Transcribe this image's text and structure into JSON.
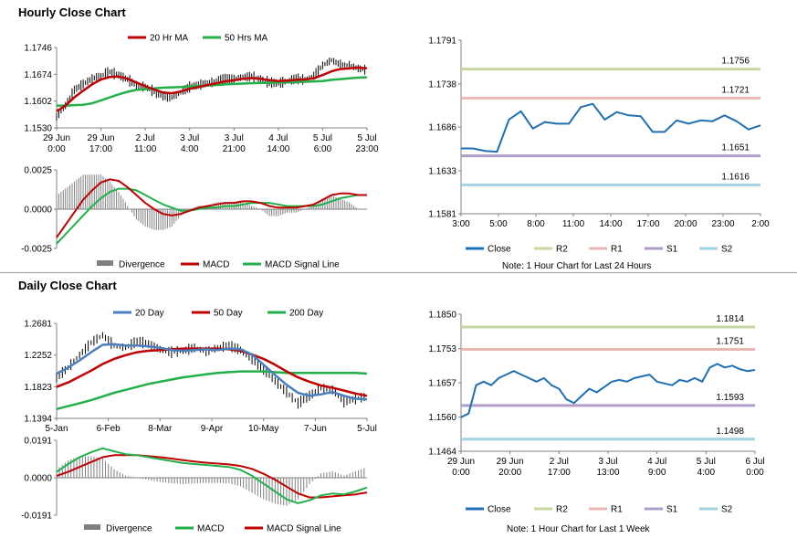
{
  "sections": {
    "hourly_title": "Hourly Close Chart",
    "daily_title": "Daily Close Chart",
    "hourly_note": "Note: 1 Hour Chart for Last 24 Hours",
    "daily_note": "Note: 1 Hour Chart for Last 1 Week"
  },
  "chart_data": [
    {
      "id": "hourly-price",
      "type": "line",
      "title": "",
      "ylim": [
        1.153,
        1.1746
      ],
      "yticks": [
        "1.1746",
        "1.1674",
        "1.1602",
        "1.1530"
      ],
      "xticks": [
        "29 Jun 0:00",
        "29 Jun 17:00",
        "2 Jul 11:00",
        "3 Jul 4:00",
        "3 Jul 21:00",
        "4 Jul 14:00",
        "5 Jul 6:00",
        "5 Jul 23:00"
      ],
      "legend": [
        "20 Hr MA",
        "50 Hrs MA"
      ],
      "colors": {
        "ma_short": "#c00000",
        "ma_long": "#22b04b",
        "price": "#000000"
      },
      "series": [
        {
          "name": "Price",
          "values": [
            1.156,
            1.159,
            1.1632,
            1.1648,
            1.1662,
            1.167,
            1.168,
            1.1672,
            1.166,
            1.1645,
            1.164,
            1.1628,
            1.1615,
            1.1612,
            1.1625,
            1.164,
            1.1645,
            1.165,
            1.1655,
            1.166,
            1.1662,
            1.1666,
            1.1668,
            1.166,
            1.1652,
            1.165,
            1.1656,
            1.1662,
            1.166,
            1.167,
            1.1698,
            1.1712,
            1.17,
            1.1698,
            1.169,
            1.1685
          ]
        },
        {
          "name": "20 Hr MA",
          "values": [
            1.1575,
            1.159,
            1.1612,
            1.163,
            1.1647,
            1.166,
            1.1667,
            1.1668,
            1.1662,
            1.1652,
            1.1642,
            1.1633,
            1.1625,
            1.1623,
            1.1628,
            1.1635,
            1.164,
            1.1645,
            1.165,
            1.1655,
            1.1658,
            1.1662,
            1.1664,
            1.1662,
            1.1658,
            1.1656,
            1.1657,
            1.1659,
            1.166,
            1.1663,
            1.1672,
            1.1682,
            1.1688,
            1.169,
            1.1692,
            1.169
          ]
        },
        {
          "name": "50 Hrs MA",
          "values": [
            1.159,
            1.159,
            1.1591,
            1.1592,
            1.1596,
            1.1604,
            1.1612,
            1.162,
            1.1627,
            1.1632,
            1.1634,
            1.1636,
            1.1638,
            1.1639,
            1.164,
            1.1642,
            1.1643,
            1.1644,
            1.1645,
            1.1647,
            1.1648,
            1.1649,
            1.165,
            1.1651,
            1.1651,
            1.1652,
            1.1652,
            1.1653,
            1.1654,
            1.1655,
            1.1656,
            1.1659,
            1.1661,
            1.1663,
            1.1665,
            1.1666
          ]
        }
      ]
    },
    {
      "id": "hourly-macd",
      "type": "line",
      "title": "",
      "ylim": [
        -0.0025,
        0.0025
      ],
      "yticks": [
        "0.0025",
        "0.0000",
        "-0.0025"
      ],
      "legend": [
        "Divergence",
        "MACD",
        "MACD Signal Line"
      ],
      "colors": {
        "divergence": "#7f7f7f",
        "macd": "#c00000",
        "signal": "#22b04b"
      },
      "series": [
        {
          "name": "MACD",
          "values": [
            -0.0018,
            -0.001,
            -0.0002,
            0.0006,
            0.0012,
            0.0017,
            0.0019,
            0.0018,
            0.0014,
            0.0009,
            0.0004,
            0.0,
            -0.0003,
            -0.0004,
            -0.0003,
            -0.0001,
            0.0001,
            0.0002,
            0.0003,
            0.0004,
            0.0004,
            0.0005,
            0.0005,
            0.0004,
            0.0002,
            0.0001,
            0.0001,
            0.0001,
            0.0002,
            0.0003,
            0.0006,
            0.0009,
            0.001,
            0.001,
            0.0009,
            0.0009
          ]
        },
        {
          "name": "MACD Signal Line",
          "values": [
            -0.0022,
            -0.0016,
            -0.001,
            -0.0004,
            0.0002,
            0.0007,
            0.0011,
            0.0013,
            0.0013,
            0.0012,
            0.0009,
            0.0006,
            0.0003,
            0.0001,
            -0.0001,
            -0.0001,
            0.0,
            0.0001,
            0.0001,
            0.0002,
            0.0002,
            0.0003,
            0.0004,
            0.0004,
            0.0004,
            0.0003,
            0.0002,
            0.0002,
            0.0002,
            0.0002,
            0.0003,
            0.0005,
            0.0007,
            0.0008,
            0.0009,
            0.0009
          ]
        }
      ]
    },
    {
      "id": "hourly-levels",
      "type": "line",
      "title": "",
      "ylim": [
        1.1581,
        1.1791
      ],
      "yticks": [
        "1.1791",
        "1.1738",
        "1.1686",
        "1.1633",
        "1.1581"
      ],
      "xticks": [
        "3:00",
        "5:00",
        "8:00",
        "11:00",
        "14:00",
        "17:00",
        "20:00",
        "23:00",
        "2:00"
      ],
      "legend": [
        "Close",
        "R2",
        "R1",
        "S1",
        "S2"
      ],
      "colors": {
        "close": "#1f6fb4",
        "r2": "#c6d6a0",
        "r1": "#e8b8b4",
        "s1": "#b09cc8",
        "s2": "#9fd4e0"
      },
      "levels": [
        {
          "name": "R2",
          "value": 1.1756,
          "label": "1.1756"
        },
        {
          "name": "R1",
          "value": 1.1721,
          "label": "1.1721"
        },
        {
          "name": "S1",
          "value": 1.1651,
          "label": "1.1651"
        },
        {
          "name": "S2",
          "value": 1.1616,
          "label": "1.1616"
        }
      ],
      "series": [
        {
          "name": "Close",
          "values": [
            1.166,
            1.166,
            1.1657,
            1.1656,
            1.1695,
            1.1705,
            1.1684,
            1.1692,
            1.169,
            1.169,
            1.171,
            1.1714,
            1.1695,
            1.1704,
            1.17,
            1.1699,
            1.168,
            1.168,
            1.1694,
            1.169,
            1.1694,
            1.1693,
            1.17,
            1.1693,
            1.1683,
            1.1688
          ]
        }
      ]
    },
    {
      "id": "daily-price",
      "type": "line",
      "title": "",
      "ylim": [
        1.1394,
        1.2681
      ],
      "yticks": [
        "1.2681",
        "1.2252",
        "1.1823",
        "1.1394"
      ],
      "xticks": [
        "5-Jan",
        "6-Feb",
        "8-Mar",
        "9-Apr",
        "10-May",
        "7-Jun",
        "5-Jul"
      ],
      "legend": [
        "20 Day",
        "50 Day",
        "200 Day"
      ],
      "colors": {
        "ma20": "#4a7fbf",
        "ma50": "#c00000",
        "ma200": "#22b04b",
        "price": "#000000"
      },
      "series": [
        {
          "name": "Price",
          "values": [
            1.195,
            1.208,
            1.225,
            1.242,
            1.252,
            1.238,
            1.235,
            1.244,
            1.24,
            1.233,
            1.229,
            1.231,
            1.235,
            1.23,
            1.235,
            1.238,
            1.232,
            1.22,
            1.205,
            1.19,
            1.175,
            1.16,
            1.17,
            1.18,
            1.178,
            1.162,
            1.166,
            1.169
          ]
        },
        {
          "name": "20 Day",
          "values": [
            1.2,
            1.208,
            1.218,
            1.229,
            1.239,
            1.24,
            1.238,
            1.238,
            1.237,
            1.235,
            1.232,
            1.231,
            1.232,
            1.233,
            1.232,
            1.234,
            1.233,
            1.226,
            1.212,
            1.198,
            1.185,
            1.174,
            1.17,
            1.172,
            1.175,
            1.17,
            1.166,
            1.165
          ]
        },
        {
          "name": "50 Day",
          "values": [
            1.182,
            1.188,
            1.196,
            1.204,
            1.213,
            1.22,
            1.225,
            1.229,
            1.231,
            1.232,
            1.233,
            1.234,
            1.234,
            1.234,
            1.234,
            1.233,
            1.231,
            1.226,
            1.22,
            1.212,
            1.203,
            1.195,
            1.189,
            1.184,
            1.181,
            1.177,
            1.173,
            1.17
          ]
        },
        {
          "name": "200 Day",
          "values": [
            1.152,
            1.156,
            1.16,
            1.164,
            1.169,
            1.174,
            1.178,
            1.182,
            1.186,
            1.189,
            1.192,
            1.195,
            1.197,
            1.199,
            1.201,
            1.202,
            1.203,
            1.203,
            1.203,
            1.202,
            1.201,
            1.201,
            1.201,
            1.201,
            1.201,
            1.201,
            1.201,
            1.2
          ]
        }
      ]
    },
    {
      "id": "daily-macd",
      "type": "line",
      "title": "",
      "ylim": [
        -0.0191,
        0.0191
      ],
      "yticks": [
        "0.0191",
        "0.0000",
        "-0.0191"
      ],
      "legend": [
        "Divergence",
        "MACD",
        "MACD Signal Line"
      ],
      "colors": {
        "divergence": "#7f7f7f",
        "macd": "#22b04b",
        "signal": "#c00000"
      },
      "series": [
        {
          "name": "MACD",
          "values": [
            0.003,
            0.007,
            0.0105,
            0.013,
            0.015,
            0.0135,
            0.012,
            0.0115,
            0.0105,
            0.0095,
            0.0085,
            0.0075,
            0.007,
            0.0065,
            0.006,
            0.0055,
            0.004,
            0.001,
            -0.003,
            -0.007,
            -0.011,
            -0.013,
            -0.0115,
            -0.009,
            -0.008,
            -0.0085,
            -0.007,
            -0.005
          ]
        },
        {
          "name": "MACD Signal Line",
          "values": [
            0.001,
            0.003,
            0.0055,
            0.008,
            0.0105,
            0.0115,
            0.0115,
            0.0115,
            0.011,
            0.0105,
            0.0098,
            0.009,
            0.0083,
            0.0077,
            0.0072,
            0.0068,
            0.006,
            0.0045,
            0.002,
            -0.001,
            -0.0045,
            -0.008,
            -0.01,
            -0.01,
            -0.0095,
            -0.009,
            -0.0085,
            -0.0075
          ]
        }
      ]
    },
    {
      "id": "daily-levels",
      "type": "line",
      "title": "",
      "ylim": [
        1.1464,
        1.185
      ],
      "yticks": [
        "1.1850",
        "1.1753",
        "1.1657",
        "1.1560",
        "1.1464"
      ],
      "xticks": [
        "29 Jun 0:00",
        "29 Jun 20:00",
        "2 Jul 17:00",
        "3 Jul 13:00",
        "4 Jul 9:00",
        "5 Jul 4:00",
        "6 Jul 0:00"
      ],
      "legend": [
        "Close",
        "R2",
        "R1",
        "S1",
        "S2"
      ],
      "colors": {
        "close": "#1f6fb4",
        "r2": "#c6d6a0",
        "r1": "#e8b8b4",
        "s1": "#b09cc8",
        "s2": "#9fd4e0"
      },
      "levels": [
        {
          "name": "R2",
          "value": 1.1814,
          "label": "1.1814"
        },
        {
          "name": "R1",
          "value": 1.1751,
          "label": "1.1751"
        },
        {
          "name": "S1",
          "value": 1.1593,
          "label": "1.1593"
        },
        {
          "name": "S2",
          "value": 1.1498,
          "label": "1.1498"
        }
      ],
      "series": [
        {
          "name": "Close",
          "values": [
            1.156,
            1.157,
            1.165,
            1.166,
            1.165,
            1.167,
            1.168,
            1.169,
            1.168,
            1.167,
            1.166,
            1.167,
            1.165,
            1.164,
            1.161,
            1.16,
            1.162,
            1.164,
            1.163,
            1.1645,
            1.166,
            1.1665,
            1.166,
            1.167,
            1.1675,
            1.168,
            1.166,
            1.1655,
            1.165,
            1.1665,
            1.166,
            1.167,
            1.166,
            1.17,
            1.171,
            1.17,
            1.1705,
            1.1695,
            1.169,
            1.1693
          ]
        }
      ]
    }
  ]
}
